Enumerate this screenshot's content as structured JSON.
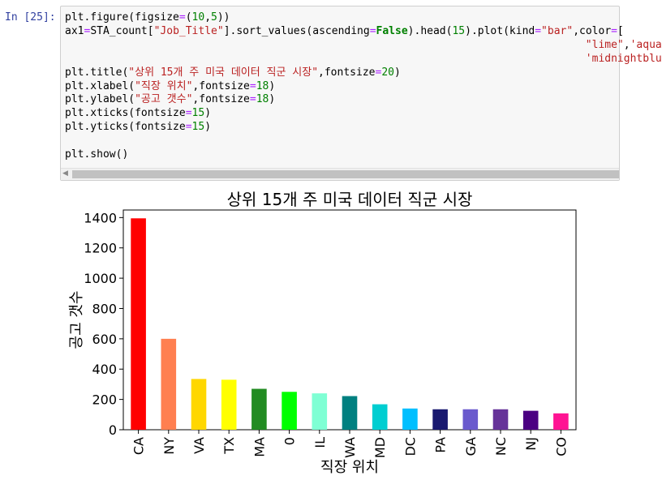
{
  "cell": {
    "prompt": "In [25]:",
    "code_lines": [
      "plt.figure(figsize=(10,5))",
      "ax1=STA_count[\"Job_Title\"].sort_values(ascending=False).head(15).plot(kind=\"bar\",color=[",
      "                                                                                  \"lime\",'aqua",
      "                                                                                  'midnightblu",
      "plt.title(\"상위 15개 주 미국 데이터 직군 시장\",fontsize=20)",
      "plt.xlabel(\"직장 위치\",fontsize=18)",
      "plt.ylabel(\"공고 갯수\",fontsize=18)",
      "plt.xticks(fontsize=15)",
      "plt.yticks(fontsize=15)",
      "",
      "plt.show()"
    ]
  },
  "chart_data": {
    "type": "bar",
    "title": "상위 15개 주 미국 데이터 직군 시장",
    "xlabel": "직장 위치",
    "ylabel": "공고 갯수",
    "categories": [
      "CA",
      "NY",
      "VA",
      "TX",
      "MA",
      "0",
      "IL",
      "WA",
      "MD",
      "DC",
      "PA",
      "GA",
      "NC",
      "NJ",
      "CO"
    ],
    "values": [
      1395,
      600,
      335,
      330,
      270,
      250,
      240,
      222,
      168,
      140,
      135,
      135,
      135,
      125,
      108
    ],
    "colors": [
      "#ff0000",
      "#ff7f50",
      "#ffd700",
      "#ffff00",
      "#228b22",
      "#00ff00",
      "#7fffd4",
      "#008080",
      "#00ced1",
      "#00bfff",
      "#191970",
      "#6a5acd",
      "#663399",
      "#4b0082",
      "#ff1493"
    ],
    "yticks": [
      0,
      200,
      400,
      600,
      800,
      1000,
      1200,
      1400
    ],
    "ylim": [
      0,
      1450
    ],
    "grid": false
  }
}
